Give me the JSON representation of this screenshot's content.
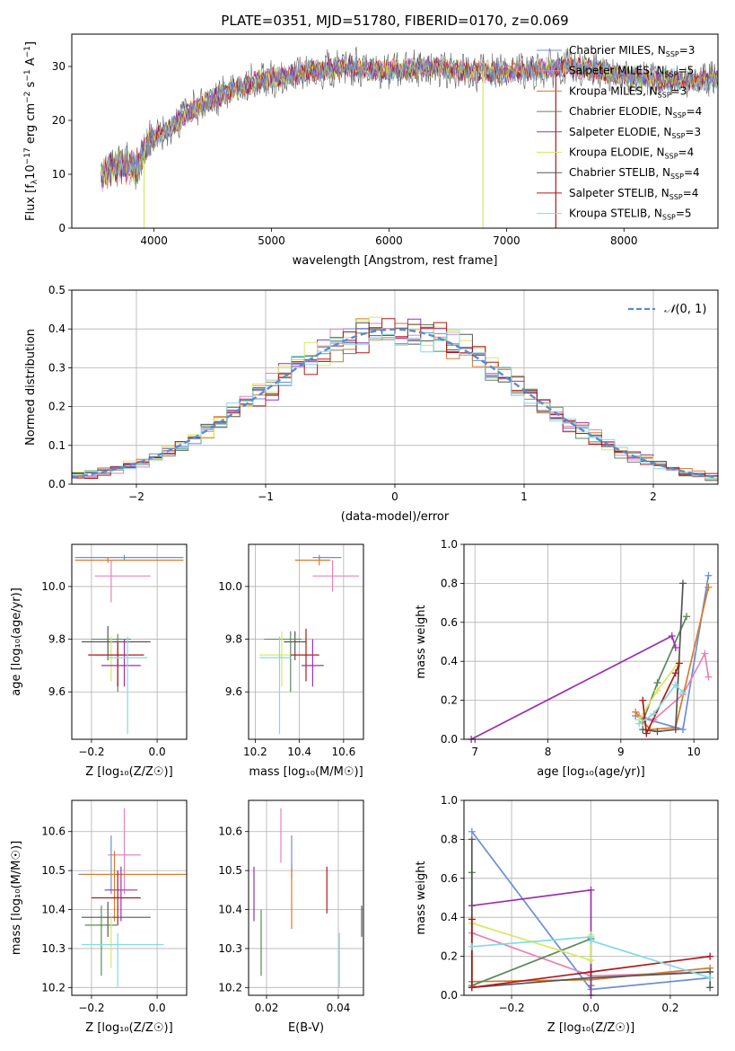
{
  "figure": {
    "title": "PLATE=0351, MJD=51780, FIBERID=0170, z=0.069"
  },
  "series_colors": {
    "Chabrier MILES": "#6a8fd8",
    "Salpeter MILES": "#e882b8",
    "Kroupa MILES": "#d87a2a",
    "Chabrier ELODIE": "#5c8a5c",
    "Salpeter ELODIE": "#9b30b0",
    "Kroupa ELODIE": "#d8e860",
    "Chabrier STELIB": "#555555",
    "Salpeter STELIB": "#b01818",
    "Kroupa STELIB": "#80dce0",
    "normal": "#5a8bd0"
  },
  "chart_data": [
    {
      "id": "spectrum",
      "type": "line",
      "title": "PLATE=0351, MJD=51780, FIBERID=0170, z=0.069",
      "xlabel": "wavelength [Angstrom, rest frame]",
      "ylabel": "Flux [f$_\\lambda$10$^{-17}$ erg cm$^{-2}$ s$^{-1}$ A$^{-1}$]",
      "ylabel_parts": {
        "a": "Flux [f",
        "b": "λ",
        "c": "10",
        "d": "−17",
        "e": " erg cm",
        "f": "−2",
        "g": " s",
        "h": "−1",
        "i": " A",
        "j": "−1",
        "k": "]"
      },
      "xlim": [
        3300,
        8800
      ],
      "ylim": [
        0,
        36
      ],
      "xticks": [
        "4000",
        "5000",
        "6000",
        "7000",
        "8000"
      ],
      "yticks": [
        "0",
        "10",
        "20",
        "30"
      ],
      "legend_position": "top-right",
      "legend": [
        {
          "name": "Chabrier MILES",
          "n": "3"
        },
        {
          "name": "Salpeter MILES",
          "n": "5"
        },
        {
          "name": "Kroupa MILES",
          "n": "3"
        },
        {
          "name": "Chabrier ELODIE",
          "n": "4"
        },
        {
          "name": "Salpeter ELODIE",
          "n": "3"
        },
        {
          "name": "Kroupa ELODIE",
          "n": "4"
        },
        {
          "name": "Chabrier STELIB",
          "n": "4"
        },
        {
          "name": "Salpeter STELIB",
          "n": "4"
        },
        {
          "name": "Kroupa STELIB",
          "n": "5"
        }
      ],
      "continuum": [
        [
          3550,
          10
        ],
        [
          3700,
          12
        ],
        [
          3850,
          11
        ],
        [
          3950,
          16
        ],
        [
          4100,
          18
        ],
        [
          4300,
          21.5
        ],
        [
          4500,
          24
        ],
        [
          4700,
          26
        ],
        [
          4900,
          27.5
        ],
        [
          5100,
          28
        ],
        [
          5300,
          29
        ],
        [
          5500,
          29.5
        ],
        [
          5700,
          30
        ],
        [
          5900,
          29
        ],
        [
          6100,
          29.5
        ],
        [
          6300,
          30
        ],
        [
          6500,
          29.5
        ],
        [
          6700,
          29
        ],
        [
          6900,
          29
        ],
        [
          7100,
          29
        ],
        [
          7300,
          29.5
        ],
        [
          7500,
          30
        ],
        [
          7700,
          29.5
        ],
        [
          7900,
          28.5
        ],
        [
          8100,
          28
        ],
        [
          8300,
          27.5
        ],
        [
          8500,
          27.5
        ],
        [
          8800,
          27.5
        ]
      ],
      "spikes": [
        {
          "x": 3915,
          "y_low": 0,
          "series": "Kroupa ELODIE"
        },
        {
          "x": 6800,
          "y_low": 0,
          "series": "Kroupa ELODIE"
        },
        {
          "x": 7420,
          "y_low": 0,
          "series": "Salpeter STELIB"
        }
      ]
    },
    {
      "id": "residuals",
      "type": "histogram",
      "xlabel": "(data-model)/error",
      "ylabel": "Normed distribution",
      "xlim": [
        -2.5,
        2.5
      ],
      "ylim": [
        0,
        0.5
      ],
      "xticks": [
        "−2",
        "−1",
        "0",
        "1",
        "2"
      ],
      "yticks": [
        "0.0",
        "0.1",
        "0.2",
        "0.3",
        "0.4",
        "0.5"
      ],
      "bin_width": 0.1,
      "legend": [
        {
          "name": "N(0,1)",
          "label_parts": {
            "script": "𝒩",
            "rest": "(0, 1)"
          }
        }
      ],
      "legend_position": "top-right",
      "grid": true
    },
    {
      "id": "age-vs-z",
      "type": "scatter",
      "xlabel": "Z [log₁₀(Z/Z☉)]",
      "ylabel": "age  [log₁₀(age/yr)]",
      "xlim": [
        -0.26,
        0.09
      ],
      "ylim": [
        9.42,
        10.16
      ],
      "xticks": [
        "−0.2",
        "0.0"
      ],
      "yticks": [
        "9.6",
        "9.8",
        "10.0"
      ],
      "grid": true,
      "points": [
        {
          "series": "Chabrier MILES",
          "x": -0.1,
          "y": 10.11,
          "xerr": [
            0.15,
            0.18
          ],
          "yerr": [
            0.01,
            0.01
          ]
        },
        {
          "series": "Kroupa MILES",
          "x": -0.15,
          "y": 10.1,
          "xerr": [
            0.1,
            0.23
          ],
          "yerr": [
            0.01,
            0.01
          ]
        },
        {
          "series": "Salpeter MILES",
          "x": -0.14,
          "y": 10.04,
          "xerr": [
            0.05,
            0.12
          ],
          "yerr": [
            0.1,
            0.06
          ]
        },
        {
          "series": "Chabrier STELIB",
          "x": -0.15,
          "y": 9.79,
          "xerr": [
            0.08,
            0.13
          ],
          "yerr": [
            0.07,
            0.06
          ]
        },
        {
          "series": "Chabrier ELODIE",
          "x": -0.12,
          "y": 9.8,
          "xerr": [
            0.08,
            0.04
          ],
          "yerr": [
            0.2,
            0.02
          ]
        },
        {
          "series": "Kroupa ELODIE",
          "x": -0.14,
          "y": 9.74,
          "xerr": [
            0.05,
            0.06
          ],
          "yerr": [
            0.1,
            0.07
          ]
        },
        {
          "series": "Salpeter STELIB",
          "x": -0.12,
          "y": 9.74,
          "xerr": [
            0.09,
            0.08
          ],
          "yerr": [
            0.12,
            0.05
          ]
        },
        {
          "series": "Salpeter ELODIE",
          "x": -0.1,
          "y": 9.7,
          "xerr": [
            0.07,
            0.05
          ],
          "yerr": [
            0.08,
            0.1
          ]
        },
        {
          "series": "Kroupa STELIB",
          "x": -0.09,
          "y": 9.73,
          "xerr": [
            0.06,
            0.06
          ],
          "yerr": [
            0.29,
            0.08
          ]
        }
      ]
    },
    {
      "id": "age-vs-mass",
      "type": "scatter",
      "xlabel": "mass [log₁₀(M/M☉)]",
      "xlim": [
        10.17,
        10.69
      ],
      "ylim": [
        9.42,
        10.16
      ],
      "xticks": [
        "10.2",
        "10.4",
        "10.6"
      ],
      "yticks": [
        "9.6",
        "9.8",
        "10.0"
      ],
      "grid": true,
      "points": [
        {
          "series": "Chabrier MILES",
          "x": 10.49,
          "y": 10.11,
          "xerr": [
            0.03,
            0.1
          ],
          "yerr": [
            0.01,
            0.01
          ]
        },
        {
          "series": "Kroupa MILES",
          "x": 10.49,
          "y": 10.1,
          "xerr": [
            0.11,
            0.05
          ],
          "yerr": [
            0.02,
            0.01
          ]
        },
        {
          "series": "Salpeter MILES",
          "x": 10.55,
          "y": 10.04,
          "xerr": [
            0.09,
            0.12
          ],
          "yerr": [
            0.06,
            0.06
          ]
        },
        {
          "series": "Chabrier STELIB",
          "x": 10.38,
          "y": 9.79,
          "xerr": [
            0.05,
            0.05
          ],
          "yerr": [
            0.07,
            0.04
          ]
        },
        {
          "series": "Chabrier ELODIE",
          "x": 10.36,
          "y": 9.8,
          "xerr": [
            0.12,
            0.05
          ],
          "yerr": [
            0.2,
            0.03
          ]
        },
        {
          "series": "Salpeter STELIB",
          "x": 10.43,
          "y": 9.74,
          "xerr": [
            0.07,
            0.06
          ],
          "yerr": [
            0.1,
            0.1
          ]
        },
        {
          "series": "Salpeter ELODIE",
          "x": 10.46,
          "y": 9.7,
          "xerr": [
            0.05,
            0.05
          ],
          "yerr": [
            0.08,
            0.1
          ]
        },
        {
          "series": "Kroupa ELODIE",
          "x": 10.32,
          "y": 9.74,
          "xerr": [
            0.1,
            0.04
          ],
          "yerr": [
            0.12,
            0.09
          ]
        },
        {
          "series": "Kroupa STELIB",
          "x": 10.31,
          "y": 9.73,
          "xerr": [
            0.09,
            0.05
          ],
          "yerr": [
            0.29,
            0.08
          ]
        }
      ]
    },
    {
      "id": "weight-vs-age",
      "type": "line",
      "xlabel": "age  [log₁₀(age/yr)]",
      "ylabel": "mass weight",
      "xlim": [
        6.85,
        10.33
      ],
      "ylim": [
        0,
        1
      ],
      "xticks": [
        "7",
        "8",
        "9",
        "10"
      ],
      "yticks": [
        "0.0",
        "0.2",
        "0.4",
        "0.6",
        "0.8",
        "1.0"
      ],
      "grid": true,
      "series": [
        {
          "name": "Chabrier MILES",
          "x": [
            9.2,
            9.85,
            10.2
          ],
          "y": [
            0.12,
            0.05,
            0.84
          ]
        },
        {
          "name": "Salpeter MILES",
          "x": [
            9.25,
            9.45,
            9.85,
            10.15,
            10.2
          ],
          "y": [
            0.12,
            0.1,
            0.23,
            0.44,
            0.32
          ]
        },
        {
          "name": "Kroupa MILES",
          "x": [
            9.2,
            9.4,
            9.75,
            10.2
          ],
          "y": [
            0.14,
            0.05,
            0.06,
            0.78
          ]
        },
        {
          "name": "Chabrier ELODIE",
          "x": [
            9.3,
            9.5,
            9.9
          ],
          "y": [
            0.09,
            0.29,
            0.63
          ]
        },
        {
          "name": "Salpeter ELODIE",
          "x": [
            6.95,
            9.7,
            9.75
          ],
          "y": [
            0.0,
            0.53,
            0.47
          ]
        },
        {
          "name": "Kroupa ELODIE",
          "x": [
            9.25,
            9.5,
            9.8
          ],
          "y": [
            0.1,
            0.25,
            0.4
          ]
        },
        {
          "name": "Chabrier STELIB",
          "x": [
            9.3,
            9.5,
            9.75,
            9.85
          ],
          "y": [
            0.05,
            0.04,
            0.05,
            0.8
          ]
        },
        {
          "name": "Salpeter STELIB",
          "x": [
            9.3,
            9.35,
            9.75,
            9.8
          ],
          "y": [
            0.2,
            0.03,
            0.34,
            0.39
          ]
        },
        {
          "name": "Kroupa STELIB",
          "x": [
            9.25,
            9.45,
            9.75,
            9.85
          ],
          "y": [
            0.08,
            0.13,
            0.28,
            0.24
          ]
        }
      ]
    },
    {
      "id": "mass-vs-z",
      "type": "scatter",
      "xlabel": "Z [log₁₀(Z/Z☉)]",
      "ylabel": "mass [log₁₀(M/M☉)]",
      "xlim": [
        -0.26,
        0.09
      ],
      "ylim": [
        10.18,
        10.68
      ],
      "xticks": [
        "−0.2",
        "0.0"
      ],
      "yticks": [
        "10.2",
        "10.3",
        "10.4",
        "10.5",
        "10.6"
      ],
      "grid": true,
      "points": [
        {
          "series": "Salpeter MILES",
          "x": -0.1,
          "y": 10.54,
          "xerr": [
            0.05,
            0.05
          ],
          "yerr": [
            0.1,
            0.12
          ]
        },
        {
          "series": "Chabrier MILES",
          "x": -0.14,
          "y": 10.49,
          "xerr": [
            0.1,
            0.22
          ],
          "yerr": [
            0.05,
            0.1
          ]
        },
        {
          "series": "Kroupa MILES",
          "x": -0.13,
          "y": 10.49,
          "xerr": [
            0.1,
            0.22
          ],
          "yerr": [
            0.12,
            0.06
          ]
        },
        {
          "series": "Salpeter ELODIE",
          "x": -0.11,
          "y": 10.45,
          "xerr": [
            0.05,
            0.05
          ],
          "yerr": [
            0.08,
            0.06
          ]
        },
        {
          "series": "Salpeter STELIB",
          "x": -0.12,
          "y": 10.43,
          "xerr": [
            0.08,
            0.07
          ],
          "yerr": [
            0.07,
            0.07
          ]
        },
        {
          "series": "Chabrier STELIB",
          "x": -0.15,
          "y": 10.38,
          "xerr": [
            0.08,
            0.13
          ],
          "yerr": [
            0.05,
            0.04
          ]
        },
        {
          "series": "Chabrier ELODIE",
          "x": -0.17,
          "y": 10.36,
          "xerr": [
            0.05,
            0.05
          ],
          "yerr": [
            0.13,
            0.05
          ]
        },
        {
          "series": "Kroupa ELODIE",
          "x": -0.14,
          "y": 10.31,
          "xerr": [
            0.07,
            0.07
          ],
          "yerr": [
            0.06,
            0.07
          ]
        },
        {
          "series": "Kroupa STELIB",
          "x": -0.12,
          "y": 10.31,
          "xerr": [
            0.11,
            0.14
          ],
          "yerr": [
            0.11,
            0.03
          ]
        }
      ]
    },
    {
      "id": "mass-vs-ebv",
      "type": "scatter",
      "xlabel": "E(B-V)",
      "xlim": [
        0.015,
        0.047
      ],
      "ylim": [
        10.18,
        10.68
      ],
      "xticks": [
        "0.02",
        "0.04"
      ],
      "yticks": [
        "10.2",
        "10.3",
        "10.4",
        "10.5",
        "10.6"
      ],
      "grid": true,
      "points": [
        {
          "series": "Salpeter ELODIE",
          "x": 0.0165,
          "y": 10.44,
          "yerr": [
            0.07,
            0.07
          ]
        },
        {
          "series": "Kroupa ELODIE",
          "x": 0.0185,
          "y": 10.31,
          "yerr": [
            0.08,
            0.07
          ]
        },
        {
          "series": "Chabrier ELODIE",
          "x": 0.0185,
          "y": 10.3,
          "yerr": [
            0.07,
            0.1
          ]
        },
        {
          "series": "Salpeter MILES",
          "x": 0.024,
          "y": 10.6,
          "yerr": [
            0.08,
            0.06
          ]
        },
        {
          "series": "Chabrier MILES",
          "x": 0.027,
          "y": 10.53,
          "yerr": [
            0.05,
            0.06
          ]
        },
        {
          "series": "Kroupa MILES",
          "x": 0.027,
          "y": 10.43,
          "yerr": [
            0.08,
            0.08
          ]
        },
        {
          "series": "Salpeter STELIB",
          "x": 0.0368,
          "y": 10.45,
          "yerr": [
            0.06,
            0.06
          ]
        },
        {
          "series": "Kroupa STELIB",
          "x": 0.0403,
          "y": 10.28,
          "yerr": [
            0.08,
            0.06
          ]
        },
        {
          "series": "Chabrier STELIB",
          "x": 0.0465,
          "y": 10.37,
          "yerr": [
            0.04,
            0.04
          ]
        }
      ]
    },
    {
      "id": "weight-vs-z",
      "type": "line",
      "xlabel": "Z [log₁₀(Z/Z☉)]",
      "ylabel": "mass weight",
      "xlim": [
        -0.32,
        0.32
      ],
      "ylim": [
        0,
        1
      ],
      "xticks": [
        "−0.2",
        "0.0",
        "0.2"
      ],
      "yticks": [
        "0.0",
        "0.2",
        "0.4",
        "0.6",
        "0.8",
        "1.0"
      ],
      "grid": true,
      "series": [
        {
          "name": "Chabrier MILES",
          "x": [
            -0.3,
            0.0,
            0.3
          ],
          "y": [
            0.84,
            0.03,
            0.09
          ]
        },
        {
          "name": "Salpeter MILES",
          "x": [
            -0.3,
            0.0,
            0.3
          ],
          "y": [
            0.32,
            0.1,
            0.12
          ]
        },
        {
          "name": "Kroupa MILES",
          "x": [
            -0.3,
            0.0,
            0.3
          ],
          "y": [
            0.07,
            0.08,
            0.14
          ]
        },
        {
          "name": "Chabrier ELODIE",
          "x": [
            -0.3,
            -0.3,
            0.0,
            0.0
          ],
          "y": [
            0.63,
            0.05,
            0.29,
            0.05
          ]
        },
        {
          "name": "Salpeter ELODIE",
          "x": [
            -0.3,
            0.0,
            0.0
          ],
          "y": [
            0.46,
            0.54,
            0.0
          ]
        },
        {
          "name": "Kroupa ELODIE",
          "x": [
            -0.3,
            0.0,
            0.0
          ],
          "y": [
            0.37,
            0.18,
            0.31
          ]
        },
        {
          "name": "Chabrier STELIB",
          "x": [
            -0.3,
            -0.3,
            0.0,
            0.3,
            0.3
          ],
          "y": [
            0.8,
            0.04,
            0.09,
            0.12,
            0.04
          ]
        },
        {
          "name": "Salpeter STELIB",
          "x": [
            -0.3,
            -0.3,
            0.0,
            0.3
          ],
          "y": [
            0.39,
            0.04,
            0.12,
            0.2
          ]
        },
        {
          "name": "Kroupa STELIB",
          "x": [
            -0.3,
            0.0,
            0.0,
            0.3
          ],
          "y": [
            0.25,
            0.3,
            0.28,
            0.09
          ]
        }
      ]
    }
  ]
}
